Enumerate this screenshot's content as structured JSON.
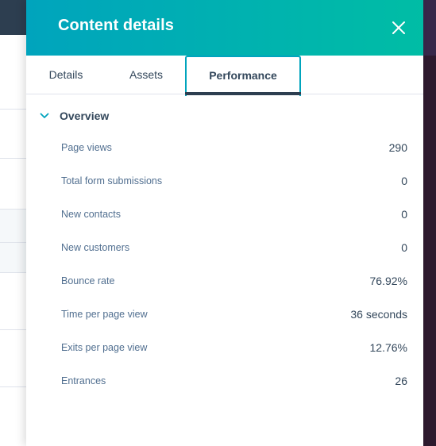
{
  "panel": {
    "title": "Content details",
    "close_icon": "close-icon"
  },
  "tabs": [
    {
      "label": "Details",
      "active": false
    },
    {
      "label": "Assets",
      "active": false
    },
    {
      "label": "Performance",
      "active": true
    }
  ],
  "overview": {
    "label": "Overview",
    "icon": "chevron-down-icon",
    "metrics": [
      {
        "label": "Page views",
        "value": "290"
      },
      {
        "label": "Total form submissions",
        "value": "0"
      },
      {
        "label": "New contacts",
        "value": "0"
      },
      {
        "label": "New customers",
        "value": "0"
      },
      {
        "label": "Bounce rate",
        "value": "76.92%"
      },
      {
        "label": "Time per page view",
        "value": "36 seconds"
      },
      {
        "label": "Exits per page view",
        "value": "12.76%"
      },
      {
        "label": "Entrances",
        "value": "26"
      }
    ]
  },
  "colors": {
    "header_gradient_start": "#00a4bd",
    "header_gradient_end": "#00bda5",
    "active_tab_border": "#00a4bd",
    "active_tab_underline": "#2d3e50",
    "text_primary": "#33475b",
    "text_secondary": "#516f90"
  }
}
